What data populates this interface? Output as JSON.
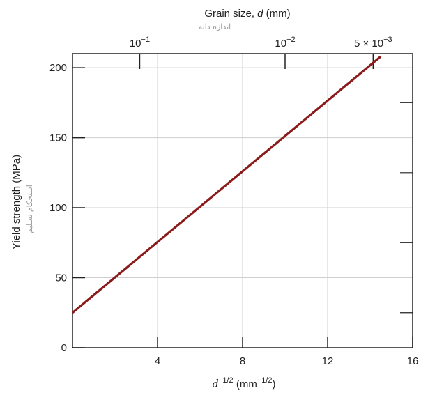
{
  "chart_data": {
    "type": "line",
    "title": "",
    "xlabel_base": "d",
    "xlabel_exp": "−1/2",
    "xlabel_unit_base": " (mm",
    "xlabel_unit_exp": "−1/2",
    "xlabel_unit_close": ")",
    "ylabel": "Yield strength (MPa)",
    "ylabel_annotation": "استحکام تسلیم",
    "top_axis_label": "Grain size, d (mm)",
    "top_axis_label_base": "Grain size, ",
    "top_axis_label_var": "d",
    "top_axis_label_unit": " (mm)",
    "top_axis_annotation": "اندازه دانه",
    "xlim": [
      0,
      16
    ],
    "ylim": [
      0,
      210
    ],
    "x_ticks": [
      4,
      8,
      12,
      16
    ],
    "y_ticks": [
      0,
      50,
      100,
      150,
      200
    ],
    "top_ticks": [
      {
        "d": 0.1,
        "label_base": "10",
        "label_exp": "−1"
      },
      {
        "d": 0.01,
        "label_base": "10",
        "label_exp": "−2"
      },
      {
        "d": 0.005,
        "label_base": "5 × 10",
        "label_exp": "−3"
      }
    ],
    "grid": true,
    "series": [
      {
        "color": "#8b1a1a",
        "x": [
          0,
          14.5
        ],
        "y": [
          25,
          208
        ]
      }
    ]
  }
}
